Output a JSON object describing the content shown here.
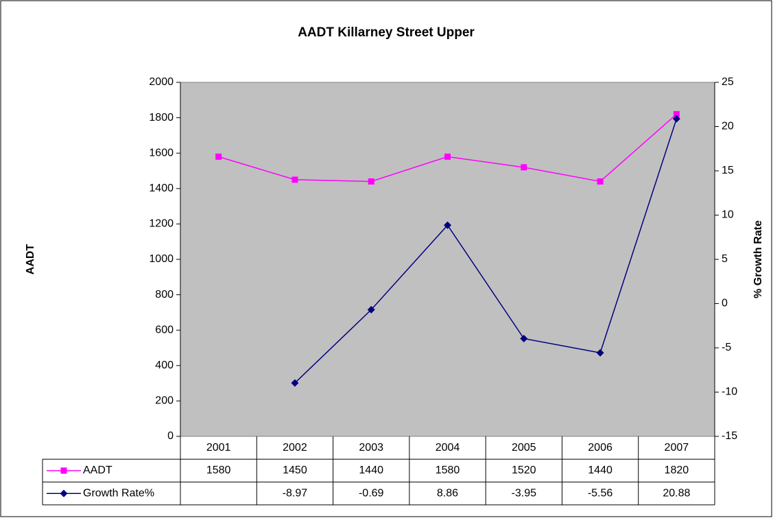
{
  "chart_data": {
    "type": "line",
    "title": "AADT Killarney Street Upper",
    "y_label": "AADT",
    "y2_label": "% Growth Rate",
    "categories": [
      "2001",
      "2002",
      "2003",
      "2004",
      "2005",
      "2006",
      "2007"
    ],
    "series": [
      {
        "name": "AADT",
        "color": "#ff00ff",
        "marker": "square",
        "values": [
          1580,
          1450,
          1440,
          1580,
          1520,
          1440,
          1820
        ]
      },
      {
        "name": "Growth Rate%",
        "color": "#000080",
        "marker": "diamond",
        "axis": "y2",
        "values": [
          null,
          -8.97,
          -0.69,
          8.86,
          -3.95,
          -5.56,
          20.88
        ]
      }
    ],
    "ylim": [
      0,
      2000
    ],
    "yticks": [
      0,
      200,
      400,
      600,
      800,
      1000,
      1200,
      1400,
      1600,
      1800,
      2000
    ],
    "y2lim": [
      -15,
      25
    ],
    "y2ticks": [
      -15,
      -10,
      -5,
      0,
      5,
      10,
      15,
      20,
      25
    ],
    "plot_background": "#c0c0c0",
    "data_table": true
  }
}
